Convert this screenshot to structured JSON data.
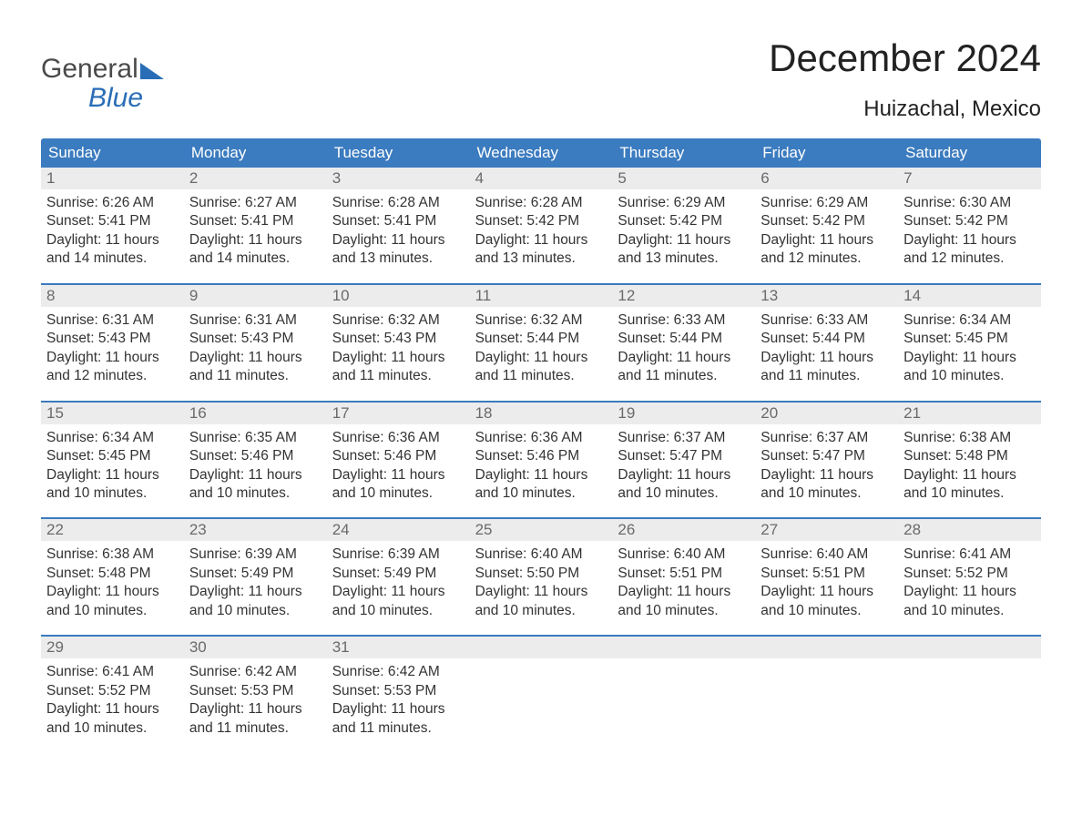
{
  "brand": {
    "word1": "General",
    "word2": "Blue"
  },
  "title": "December 2024",
  "location": "Huizachal, Mexico",
  "colors": {
    "header_bg": "#3b7bbf",
    "header_text": "#ffffff",
    "accent": "#2a6db7",
    "daynum_bg": "#ececec",
    "daynum_text": "#6a6a6a",
    "body_text": "#333333",
    "page_bg": "#ffffff"
  },
  "layout": {
    "columns": 7,
    "rows": 5,
    "type": "calendar-table",
    "first_weekday": "Sunday"
  },
  "weekdays": [
    "Sunday",
    "Monday",
    "Tuesday",
    "Wednesday",
    "Thursday",
    "Friday",
    "Saturday"
  ],
  "weeks": [
    [
      {
        "n": "1",
        "sunrise": "Sunrise: 6:26 AM",
        "sunset": "Sunset: 5:41 PM",
        "daylight": "Daylight: 11 hours and 14 minutes."
      },
      {
        "n": "2",
        "sunrise": "Sunrise: 6:27 AM",
        "sunset": "Sunset: 5:41 PM",
        "daylight": "Daylight: 11 hours and 14 minutes."
      },
      {
        "n": "3",
        "sunrise": "Sunrise: 6:28 AM",
        "sunset": "Sunset: 5:41 PM",
        "daylight": "Daylight: 11 hours and 13 minutes."
      },
      {
        "n": "4",
        "sunrise": "Sunrise: 6:28 AM",
        "sunset": "Sunset: 5:42 PM",
        "daylight": "Daylight: 11 hours and 13 minutes."
      },
      {
        "n": "5",
        "sunrise": "Sunrise: 6:29 AM",
        "sunset": "Sunset: 5:42 PM",
        "daylight": "Daylight: 11 hours and 13 minutes."
      },
      {
        "n": "6",
        "sunrise": "Sunrise: 6:29 AM",
        "sunset": "Sunset: 5:42 PM",
        "daylight": "Daylight: 11 hours and 12 minutes."
      },
      {
        "n": "7",
        "sunrise": "Sunrise: 6:30 AM",
        "sunset": "Sunset: 5:42 PM",
        "daylight": "Daylight: 11 hours and 12 minutes."
      }
    ],
    [
      {
        "n": "8",
        "sunrise": "Sunrise: 6:31 AM",
        "sunset": "Sunset: 5:43 PM",
        "daylight": "Daylight: 11 hours and 12 minutes."
      },
      {
        "n": "9",
        "sunrise": "Sunrise: 6:31 AM",
        "sunset": "Sunset: 5:43 PM",
        "daylight": "Daylight: 11 hours and 11 minutes."
      },
      {
        "n": "10",
        "sunrise": "Sunrise: 6:32 AM",
        "sunset": "Sunset: 5:43 PM",
        "daylight": "Daylight: 11 hours and 11 minutes."
      },
      {
        "n": "11",
        "sunrise": "Sunrise: 6:32 AM",
        "sunset": "Sunset: 5:44 PM",
        "daylight": "Daylight: 11 hours and 11 minutes."
      },
      {
        "n": "12",
        "sunrise": "Sunrise: 6:33 AM",
        "sunset": "Sunset: 5:44 PM",
        "daylight": "Daylight: 11 hours and 11 minutes."
      },
      {
        "n": "13",
        "sunrise": "Sunrise: 6:33 AM",
        "sunset": "Sunset: 5:44 PM",
        "daylight": "Daylight: 11 hours and 11 minutes."
      },
      {
        "n": "14",
        "sunrise": "Sunrise: 6:34 AM",
        "sunset": "Sunset: 5:45 PM",
        "daylight": "Daylight: 11 hours and 10 minutes."
      }
    ],
    [
      {
        "n": "15",
        "sunrise": "Sunrise: 6:34 AM",
        "sunset": "Sunset: 5:45 PM",
        "daylight": "Daylight: 11 hours and 10 minutes."
      },
      {
        "n": "16",
        "sunrise": "Sunrise: 6:35 AM",
        "sunset": "Sunset: 5:46 PM",
        "daylight": "Daylight: 11 hours and 10 minutes."
      },
      {
        "n": "17",
        "sunrise": "Sunrise: 6:36 AM",
        "sunset": "Sunset: 5:46 PM",
        "daylight": "Daylight: 11 hours and 10 minutes."
      },
      {
        "n": "18",
        "sunrise": "Sunrise: 6:36 AM",
        "sunset": "Sunset: 5:46 PM",
        "daylight": "Daylight: 11 hours and 10 minutes."
      },
      {
        "n": "19",
        "sunrise": "Sunrise: 6:37 AM",
        "sunset": "Sunset: 5:47 PM",
        "daylight": "Daylight: 11 hours and 10 minutes."
      },
      {
        "n": "20",
        "sunrise": "Sunrise: 6:37 AM",
        "sunset": "Sunset: 5:47 PM",
        "daylight": "Daylight: 11 hours and 10 minutes."
      },
      {
        "n": "21",
        "sunrise": "Sunrise: 6:38 AM",
        "sunset": "Sunset: 5:48 PM",
        "daylight": "Daylight: 11 hours and 10 minutes."
      }
    ],
    [
      {
        "n": "22",
        "sunrise": "Sunrise: 6:38 AM",
        "sunset": "Sunset: 5:48 PM",
        "daylight": "Daylight: 11 hours and 10 minutes."
      },
      {
        "n": "23",
        "sunrise": "Sunrise: 6:39 AM",
        "sunset": "Sunset: 5:49 PM",
        "daylight": "Daylight: 11 hours and 10 minutes."
      },
      {
        "n": "24",
        "sunrise": "Sunrise: 6:39 AM",
        "sunset": "Sunset: 5:49 PM",
        "daylight": "Daylight: 11 hours and 10 minutes."
      },
      {
        "n": "25",
        "sunrise": "Sunrise: 6:40 AM",
        "sunset": "Sunset: 5:50 PM",
        "daylight": "Daylight: 11 hours and 10 minutes."
      },
      {
        "n": "26",
        "sunrise": "Sunrise: 6:40 AM",
        "sunset": "Sunset: 5:51 PM",
        "daylight": "Daylight: 11 hours and 10 minutes."
      },
      {
        "n": "27",
        "sunrise": "Sunrise: 6:40 AM",
        "sunset": "Sunset: 5:51 PM",
        "daylight": "Daylight: 11 hours and 10 minutes."
      },
      {
        "n": "28",
        "sunrise": "Sunrise: 6:41 AM",
        "sunset": "Sunset: 5:52 PM",
        "daylight": "Daylight: 11 hours and 10 minutes."
      }
    ],
    [
      {
        "n": "29",
        "sunrise": "Sunrise: 6:41 AM",
        "sunset": "Sunset: 5:52 PM",
        "daylight": "Daylight: 11 hours and 10 minutes."
      },
      {
        "n": "30",
        "sunrise": "Sunrise: 6:42 AM",
        "sunset": "Sunset: 5:53 PM",
        "daylight": "Daylight: 11 hours and 11 minutes."
      },
      {
        "n": "31",
        "sunrise": "Sunrise: 6:42 AM",
        "sunset": "Sunset: 5:53 PM",
        "daylight": "Daylight: 11 hours and 11 minutes."
      },
      null,
      null,
      null,
      null
    ]
  ]
}
